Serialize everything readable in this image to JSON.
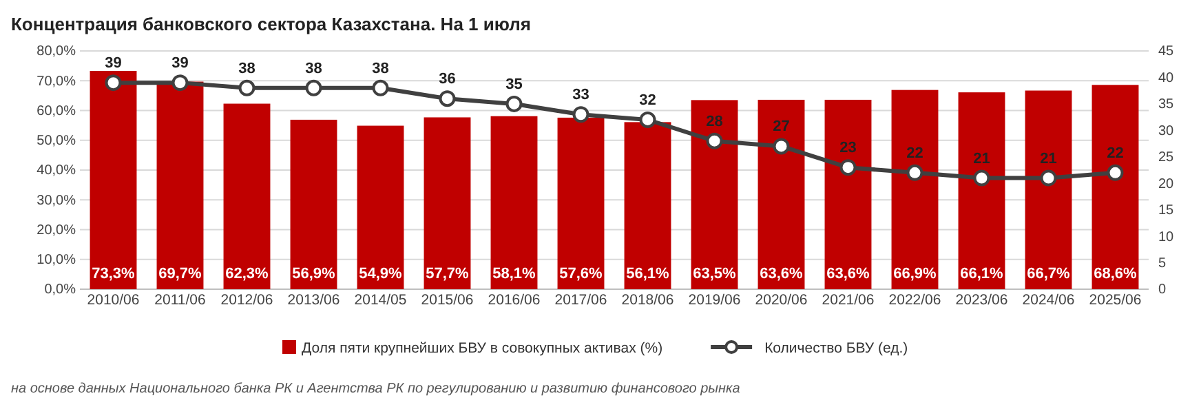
{
  "chart_data": {
    "type": "bar",
    "title": "Концентрация банковского сектора Казахстана. На 1 июля",
    "categories": [
      "2010/06",
      "2011/06",
      "2012/06",
      "2013/06",
      "2014/05",
      "2015/06",
      "2016/06",
      "2017/06",
      "2018/06",
      "2019/06",
      "2020/06",
      "2021/06",
      "2022/06",
      "2023/06",
      "2024/06",
      "2025/06"
    ],
    "series": [
      {
        "name": "Доля пяти крупнейших БВУ в совокупных активах (%)",
        "color": "#c00000",
        "values": [
          73.3,
          69.7,
          62.3,
          56.9,
          54.9,
          57.7,
          58.1,
          57.6,
          56.1,
          63.5,
          63.6,
          63.6,
          66.9,
          66.1,
          66.7,
          68.6
        ],
        "value_labels": [
          "73,3%",
          "69,7%",
          "62,3%",
          "56,9%",
          "54,9%",
          "57,7%",
          "58,1%",
          "57,6%",
          "56,1%",
          "63,5%",
          "63,6%",
          "63,6%",
          "66,9%",
          "66,1%",
          "66,7%",
          "68,6%"
        ]
      },
      {
        "name": "Количество БВУ (ед.)",
        "type": "line",
        "axis": "y2",
        "color": "#404040",
        "values": [
          39,
          39,
          38,
          38,
          38,
          36,
          35,
          33,
          32,
          28,
          27,
          23,
          22,
          21,
          21,
          22
        ],
        "value_labels": [
          "39",
          "39",
          "38",
          "38",
          "38",
          "36",
          "35",
          "33",
          "32",
          "28",
          "27",
          "23",
          "22",
          "21",
          "21",
          "22"
        ]
      }
    ],
    "ylim": [
      0,
      80
    ],
    "yticks": [
      {
        "value": 0,
        "label": "0,0%"
      },
      {
        "value": 10,
        "label": "10,0%"
      },
      {
        "value": 20,
        "label": "20,0%"
      },
      {
        "value": 30,
        "label": "30,0%"
      },
      {
        "value": 40,
        "label": "40,0%"
      },
      {
        "value": 50,
        "label": "50,0%"
      },
      {
        "value": 60,
        "label": "60,0%"
      },
      {
        "value": 70,
        "label": "70,0%"
      },
      {
        "value": 80,
        "label": "80,0%"
      }
    ],
    "y2lim": [
      0,
      45
    ],
    "y2ticks": [
      0,
      5,
      10,
      15,
      20,
      25,
      30,
      35,
      40,
      45
    ],
    "grid": "y",
    "legend": "bottom",
    "marker": "circle",
    "line_style": "solid",
    "annotations": [
      "на основе данных Национального банка РК и Агентства РК по регулированию и развитию финансового рынка"
    ]
  }
}
